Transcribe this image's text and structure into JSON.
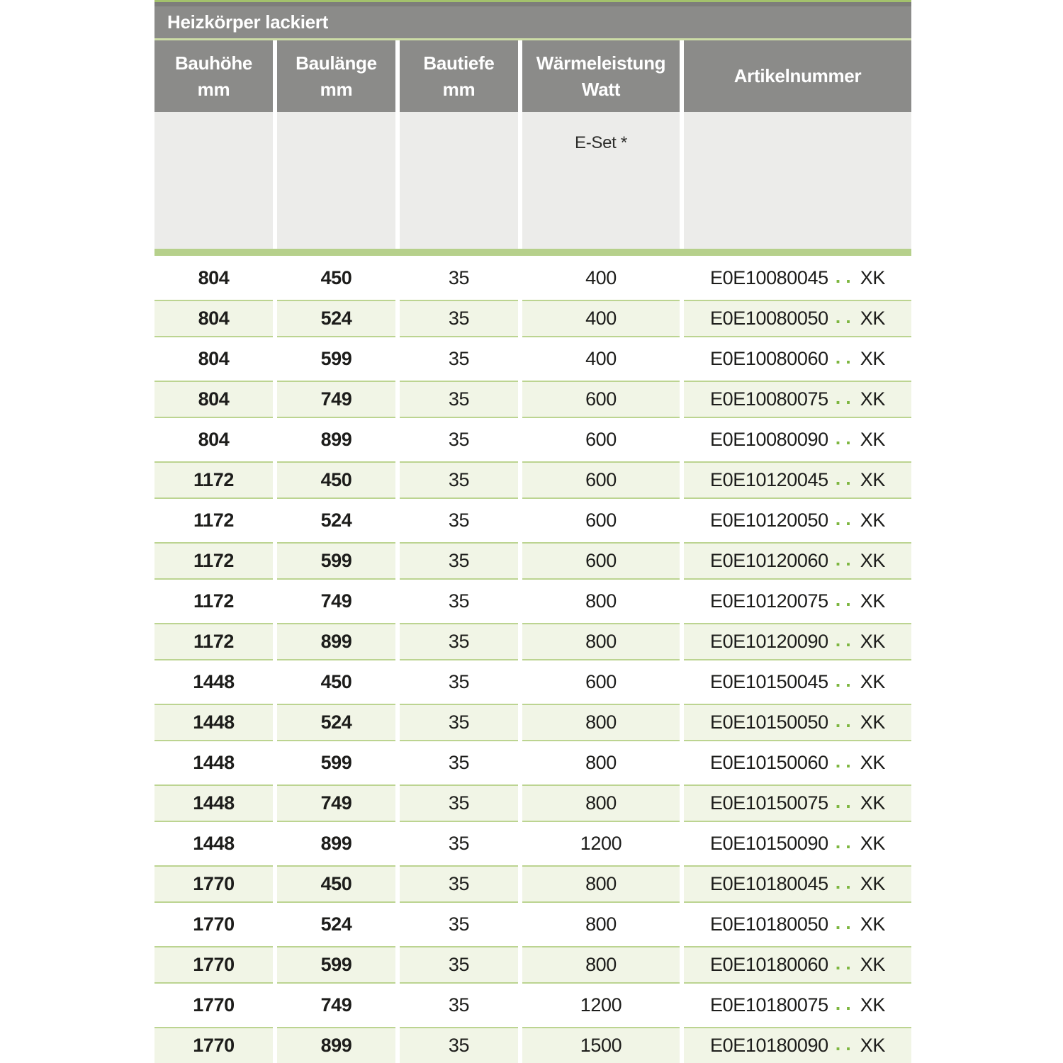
{
  "title": "Heizkörper lackiert",
  "columns": [
    {
      "line1": "Bauhöhe",
      "line2": "mm"
    },
    {
      "line1": "Baulänge",
      "line2": "mm"
    },
    {
      "line1": "Bautiefe",
      "line2": "mm"
    },
    {
      "line1": "Wärmeleistung",
      "line2": "Watt"
    },
    {
      "line1": "Artikelnummer",
      "line2": ""
    }
  ],
  "subheader": {
    "eset_label": "E-Set *"
  },
  "colors": {
    "header_gray": "#8b8b89",
    "subheader_gray": "#ececea",
    "accent_green_bar": "#b6d08b",
    "row_green_bg": "#f1f5e6",
    "row_green_border": "#bcd491",
    "dots_green": "#7db63f",
    "title_separator_green": "#ccdca6",
    "top_line_green": "#a3c16c",
    "text_dark": "#1d1d1b",
    "header_text": "#ffffff"
  },
  "rows": [
    {
      "bauhoehe": "804",
      "baulaenge": "450",
      "bautiefe": "35",
      "watt": "400",
      "artikel_base": "E0E10080045",
      "artikel_dots": "..",
      "artikel_suffix": "XK"
    },
    {
      "bauhoehe": "804",
      "baulaenge": "524",
      "bautiefe": "35",
      "watt": "400",
      "artikel_base": "E0E10080050",
      "artikel_dots": "..",
      "artikel_suffix": "XK"
    },
    {
      "bauhoehe": "804",
      "baulaenge": "599",
      "bautiefe": "35",
      "watt": "400",
      "artikel_base": "E0E10080060",
      "artikel_dots": "..",
      "artikel_suffix": "XK"
    },
    {
      "bauhoehe": "804",
      "baulaenge": "749",
      "bautiefe": "35",
      "watt": "600",
      "artikel_base": "E0E10080075",
      "artikel_dots": "..",
      "artikel_suffix": "XK"
    },
    {
      "bauhoehe": "804",
      "baulaenge": "899",
      "bautiefe": "35",
      "watt": "600",
      "artikel_base": "E0E10080090",
      "artikel_dots": "..",
      "artikel_suffix": "XK"
    },
    {
      "bauhoehe": "1172",
      "baulaenge": "450",
      "bautiefe": "35",
      "watt": "600",
      "artikel_base": "E0E10120045",
      "artikel_dots": "..",
      "artikel_suffix": "XK"
    },
    {
      "bauhoehe": "1172",
      "baulaenge": "524",
      "bautiefe": "35",
      "watt": "600",
      "artikel_base": "E0E10120050",
      "artikel_dots": "..",
      "artikel_suffix": "XK"
    },
    {
      "bauhoehe": "1172",
      "baulaenge": "599",
      "bautiefe": "35",
      "watt": "600",
      "artikel_base": "E0E10120060",
      "artikel_dots": "..",
      "artikel_suffix": "XK"
    },
    {
      "bauhoehe": "1172",
      "baulaenge": "749",
      "bautiefe": "35",
      "watt": "800",
      "artikel_base": "E0E10120075",
      "artikel_dots": "..",
      "artikel_suffix": "XK"
    },
    {
      "bauhoehe": "1172",
      "baulaenge": "899",
      "bautiefe": "35",
      "watt": "800",
      "artikel_base": "E0E10120090",
      "artikel_dots": "..",
      "artikel_suffix": "XK"
    },
    {
      "bauhoehe": "1448",
      "baulaenge": "450",
      "bautiefe": "35",
      "watt": "600",
      "artikel_base": "E0E10150045",
      "artikel_dots": "..",
      "artikel_suffix": "XK"
    },
    {
      "bauhoehe": "1448",
      "baulaenge": "524",
      "bautiefe": "35",
      "watt": "800",
      "artikel_base": "E0E10150050",
      "artikel_dots": "..",
      "artikel_suffix": "XK"
    },
    {
      "bauhoehe": "1448",
      "baulaenge": "599",
      "bautiefe": "35",
      "watt": "800",
      "artikel_base": "E0E10150060",
      "artikel_dots": "..",
      "artikel_suffix": "XK"
    },
    {
      "bauhoehe": "1448",
      "baulaenge": "749",
      "bautiefe": "35",
      "watt": "800",
      "artikel_base": "E0E10150075",
      "artikel_dots": "..",
      "artikel_suffix": "XK"
    },
    {
      "bauhoehe": "1448",
      "baulaenge": "899",
      "bautiefe": "35",
      "watt": "1200",
      "artikel_base": "E0E10150090",
      "artikel_dots": "..",
      "artikel_suffix": "XK"
    },
    {
      "bauhoehe": "1770",
      "baulaenge": "450",
      "bautiefe": "35",
      "watt": "800",
      "artikel_base": "E0E10180045",
      "artikel_dots": "..",
      "artikel_suffix": "XK"
    },
    {
      "bauhoehe": "1770",
      "baulaenge": "524",
      "bautiefe": "35",
      "watt": "800",
      "artikel_base": "E0E10180050",
      "artikel_dots": "..",
      "artikel_suffix": "XK"
    },
    {
      "bauhoehe": "1770",
      "baulaenge": "599",
      "bautiefe": "35",
      "watt": "800",
      "artikel_base": "E0E10180060",
      "artikel_dots": "..",
      "artikel_suffix": "XK"
    },
    {
      "bauhoehe": "1770",
      "baulaenge": "749",
      "bautiefe": "35",
      "watt": "1200",
      "artikel_base": "E0E10180075",
      "artikel_dots": "..",
      "artikel_suffix": "XK"
    },
    {
      "bauhoehe": "1770",
      "baulaenge": "899",
      "bautiefe": "35",
      "watt": "1500",
      "artikel_base": "E0E10180090",
      "artikel_dots": "..",
      "artikel_suffix": "XK"
    }
  ]
}
